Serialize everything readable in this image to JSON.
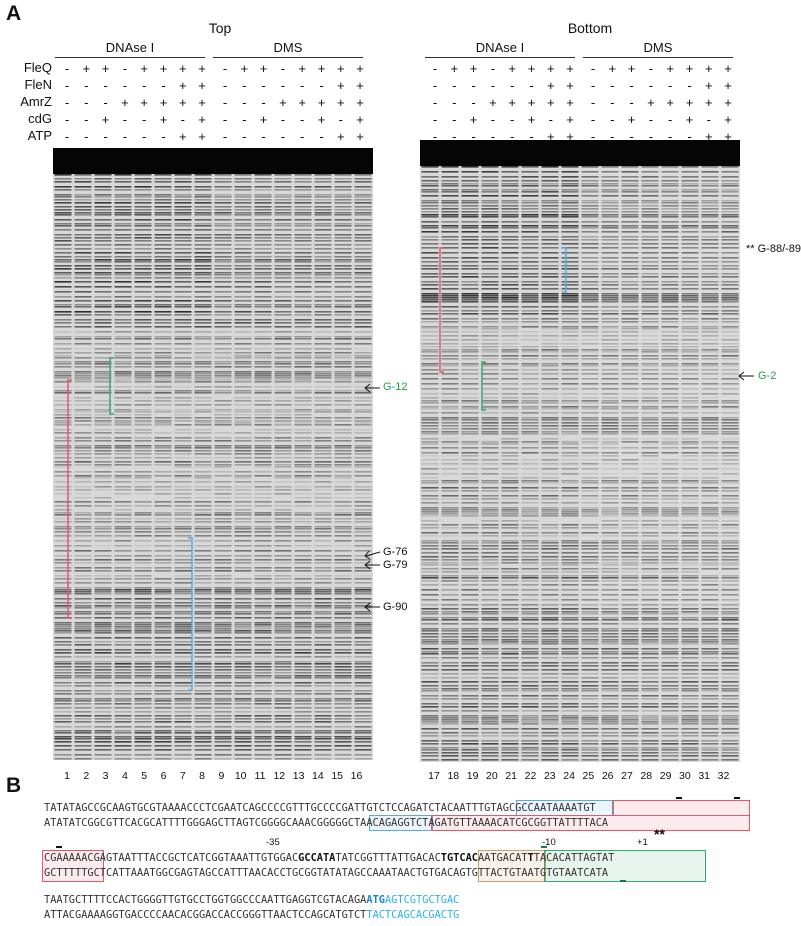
{
  "panel_a": {
    "letter": "A",
    "sections": [
      {
        "title": "Top",
        "groups": [
          "DNAse I",
          "DMS"
        ]
      },
      {
        "title": "Bottom",
        "groups": [
          "DNAse I",
          "DMS"
        ]
      }
    ],
    "row_labels": [
      "FleQ",
      "FleN",
      "AmrZ",
      "cdG",
      "ATP"
    ],
    "condition_rows": [
      [
        "-",
        "+",
        "+",
        "-",
        "+",
        "+",
        "+",
        "+"
      ],
      [
        "-",
        "-",
        "-",
        "-",
        "-",
        "-",
        "+",
        "+"
      ],
      [
        "-",
        "-",
        "-",
        "+",
        "+",
        "+",
        "+",
        "+"
      ],
      [
        "-",
        "-",
        "+",
        "-",
        "-",
        "+",
        "-",
        "+"
      ],
      [
        "-",
        "-",
        "-",
        "-",
        "-",
        "-",
        "+",
        "+"
      ]
    ],
    "lanes_left": [
      "1",
      "2",
      "3",
      "4",
      "5",
      "6",
      "7",
      "8",
      "9",
      "10",
      "11",
      "12",
      "13",
      "14",
      "15",
      "16"
    ],
    "lanes_right": [
      "17",
      "18",
      "19",
      "20",
      "21",
      "22",
      "23",
      "24",
      "25",
      "26",
      "27",
      "28",
      "29",
      "30",
      "31",
      "32"
    ],
    "labels_left": [
      {
        "text": "G-12",
        "color": "#22a04a"
      },
      {
        "text": "G-76",
        "color": "#111111"
      },
      {
        "text": "G-79",
        "color": "#111111"
      },
      {
        "text": "G-90",
        "color": "#111111"
      }
    ],
    "labels_right": [
      {
        "text": "** G-88/-89",
        "color": "#111111"
      },
      {
        "text": "G-2",
        "color": "#22a04a"
      }
    ]
  },
  "panel_b": {
    "letter": "B",
    "block1": {
      "top": "TATATAGCCGCAAGTGCGTAAAACCCTCGAATCAGCCCCGTTTGCCCCGATTGTCTCCAGATCTACAATTTGTAGCGCCAATAAAATGT",
      "bottom": "ATATATCGGCGTTCACGCATTTTGGGAGCTTAGTCGGGGCAAACGGGGGCTAACAGAGGTCTAGATGTTAAAACATCGCGGTTATTTTACA",
      "marks": "**"
    },
    "block2": {
      "m35": "-35",
      "m10": "-10",
      "p1": "+1",
      "top_a": "CGAAAAACGAGTAATTTACCGCTCATCGGTAAATTGTGGAC",
      "top_box35": "GCCATA",
      "top_b": "TATCGGTTTATTGACAC",
      "top_box10": "TGTCAC",
      "top_c": "AATGACAT",
      "top_tss": "T",
      "top_d": "TACACATTAGTAT",
      "bottom": "GCTTTTTGCTCATTAAATGGCGAGTAGCCATTTAACACCTGCGGTATATAGCCAAATAACTGTGACAGTGTTACTGTAATGTGTAATCATA"
    },
    "block3": {
      "top_a": "TAATGCTTTTCCACTGGGGTTGTGCCTGGTGGCCCAATTGAGGTCGTACAGA",
      "top_start": "ATG",
      "top_b": "AGTCGTGCTGAC",
      "bottom_a": "ATTACGAAAAGGTGACCCCAACACGGACCACCGGGTTAACTCCAGCATGTCT",
      "bottom_b": "TACTCAGCACGACTG"
    },
    "colors": {
      "red_box": "#e05a6a",
      "blue_box": "#5aa9e0",
      "green_box": "#3aa86b",
      "orange_box": "#c9a070",
      "cyan_text": "#29b4e4",
      "highlight_blue": "#1a86c8"
    }
  }
}
